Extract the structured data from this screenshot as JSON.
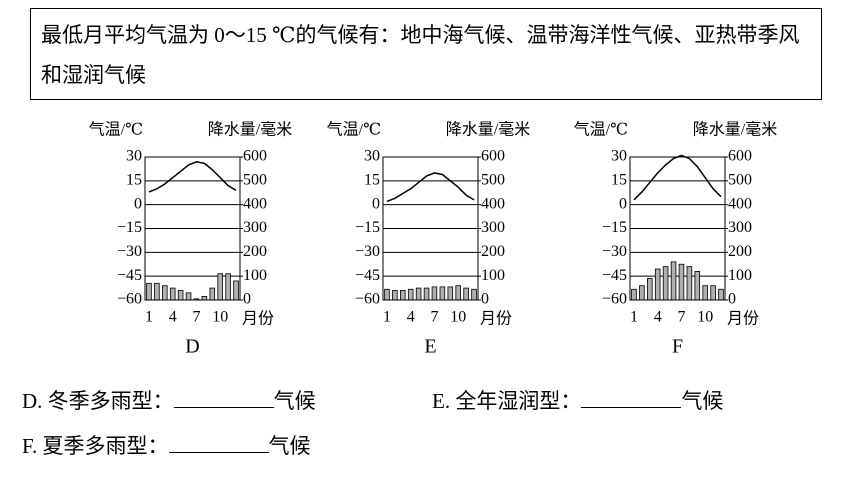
{
  "box_text": "最低月平均气温为 0～15 ℃的气候有：地中海气候、温带海洋性气候、亚热带季风和湿润气候",
  "chart_data": [
    {
      "type": "climate",
      "label": "D",
      "ylabel": "气温/℃",
      "y2label": "降水量/毫米",
      "xlabel": "月份",
      "categories": [
        "1",
        null,
        null,
        "4",
        null,
        null,
        "7",
        null,
        null,
        "10",
        null,
        null
      ],
      "series": [
        {
          "type": "line",
          "axis": "y",
          "color": "#000000",
          "values": [
            8,
            10,
            13,
            17,
            21,
            25,
            27,
            26,
            22,
            17,
            12,
            9
          ]
        },
        {
          "type": "bar",
          "axis": "y2",
          "color": "#b0b0b0",
          "values": [
            70,
            70,
            60,
            50,
            40,
            30,
            5,
            15,
            50,
            110,
            110,
            80
          ]
        }
      ],
      "ylim": [
        -60,
        30
      ],
      "yticks": [
        {
          "value": -60,
          "label": "−60"
        },
        {
          "value": -45,
          "label": "−45"
        },
        {
          "value": -30,
          "label": "−30"
        },
        {
          "value": -15,
          "label": "−15"
        },
        0,
        15,
        30
      ],
      "y2lim": [
        0,
        600
      ],
      "y2ticks": [
        0,
        100,
        200,
        300,
        400,
        500,
        600
      ],
      "grid": true
    },
    {
      "type": "climate",
      "label": "E",
      "ylabel": "气温/℃",
      "y2label": "降水量/毫米",
      "xlabel": "月份",
      "categories": [
        "1",
        null,
        null,
        "4",
        null,
        null,
        "7",
        null,
        null,
        "10",
        null,
        null
      ],
      "series": [
        {
          "type": "line",
          "axis": "y",
          "color": "#000000",
          "values": [
            2,
            4,
            7,
            10,
            14,
            18,
            20,
            19,
            15,
            11,
            6,
            3
          ]
        },
        {
          "type": "bar",
          "axis": "y2",
          "color": "#b0b0b0",
          "values": [
            45,
            40,
            40,
            45,
            50,
            50,
            55,
            55,
            55,
            60,
            50,
            45
          ]
        }
      ],
      "ylim": [
        -60,
        30
      ],
      "yticks": [
        {
          "value": -60,
          "label": "−60"
        },
        {
          "value": -45,
          "label": "−45"
        },
        {
          "value": -30,
          "label": "−30"
        },
        {
          "value": -15,
          "label": "−15"
        },
        0,
        15,
        30
      ],
      "y2lim": [
        0,
        600
      ],
      "y2ticks": [
        0,
        100,
        200,
        300,
        400,
        500,
        600
      ],
      "grid": true
    },
    {
      "type": "climate",
      "label": "F",
      "ylabel": "气温/℃",
      "y2label": "降水量/毫米",
      "xlabel": "月份",
      "categories": [
        "1",
        null,
        null,
        "4",
        null,
        null,
        "7",
        null,
        null,
        "10",
        null,
        null
      ],
      "series": [
        {
          "type": "line",
          "axis": "y",
          "color": "#000000",
          "values": [
            3,
            8,
            14,
            20,
            25,
            29,
            31,
            29,
            24,
            17,
            10,
            5
          ]
        },
        {
          "type": "bar",
          "axis": "y2",
          "color": "#b0b0b0",
          "values": [
            45,
            60,
            90,
            130,
            140,
            160,
            150,
            140,
            120,
            60,
            60,
            45
          ]
        }
      ],
      "ylim": [
        -60,
        30
      ],
      "yticks": [
        {
          "value": -60,
          "label": "−60"
        },
        {
          "value": -45,
          "label": "−45"
        },
        {
          "value": -30,
          "label": "−30"
        },
        {
          "value": -15,
          "label": "−15"
        },
        0,
        15,
        30
      ],
      "y2lim": [
        0,
        600
      ],
      "y2ticks": [
        0,
        100,
        200,
        300,
        400,
        500,
        600
      ],
      "grid": true
    }
  ],
  "questions": [
    {
      "prefix": "D. 冬季多雨型：",
      "suffix": "气候"
    },
    {
      "prefix": "E. 全年湿润型：",
      "suffix": "气候"
    },
    {
      "prefix": "F. 夏季多雨型：",
      "suffix": "气候"
    }
  ]
}
